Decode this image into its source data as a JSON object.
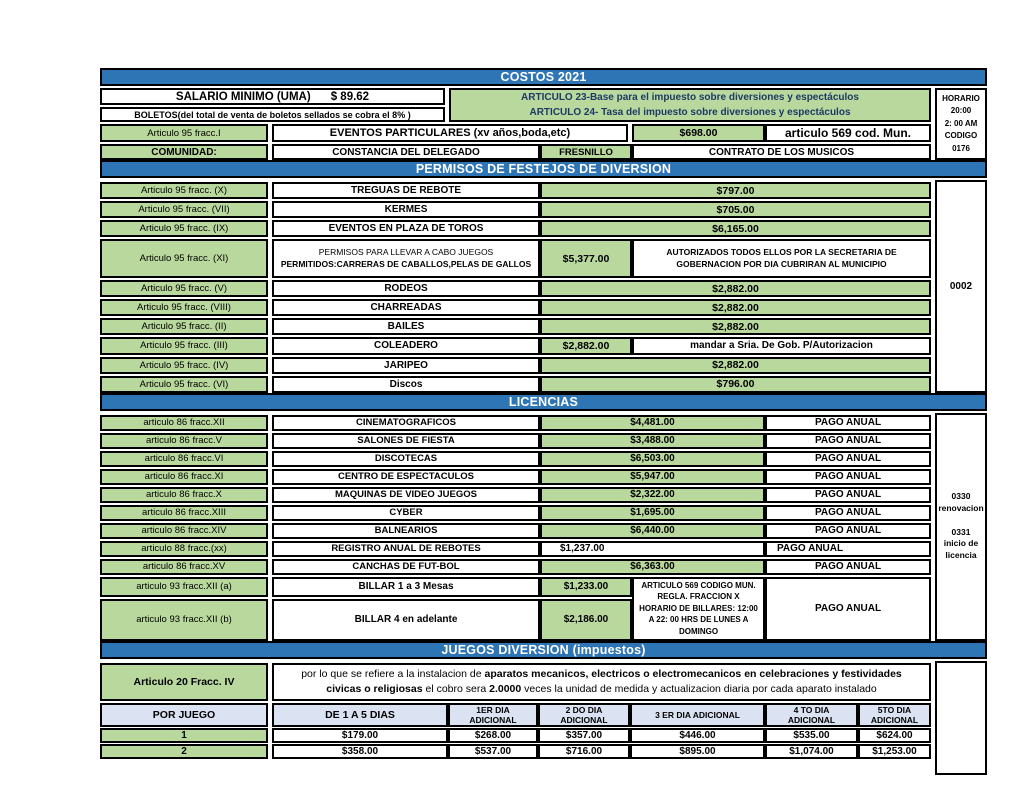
{
  "title": "COSTOS 2021",
  "colors": {
    "band_blue": "#2e75b6",
    "cell_green": "#b9d89d",
    "header_lavender": "#dbe3f2",
    "navy_text": "#1f3864"
  },
  "top": {
    "salario_label": "SALARIO MINIMO (UMA)",
    "salario_value": "$ 89.62",
    "boletos": "BOLETOS(del total de venta de boletos sellados se cobra el  8% )",
    "articulo23": "ARTICULO 23-Base para el impuesto sobre diversiones y espectáculos",
    "articulo24": "ARTICULO 24- Tasa del impuesto sobre diversiones y espectáculos",
    "horario_lines": [
      "HORARIO",
      "20:00",
      "2: 00 AM",
      "CODIGO",
      "0176"
    ],
    "eventos": {
      "label": "Articulo 95  fracc.I",
      "name": "EVENTOS PARTICULARES (xv años,boda,etc)",
      "price": "$698.00",
      "note": "articulo 569 cod. Mun."
    },
    "comunidad": {
      "label": "COMUNIDAD:",
      "name": "CONSTANCIA DEL DELEGADO",
      "place": "FRESNILLO",
      "note": "CONTRATO DE LOS MUSICOS"
    }
  },
  "permisos": {
    "title": "PERMISOS DE FESTEJOS DE DIVERSION",
    "side_code": "0002",
    "rows": [
      {
        "label": "Articulo 95 fracc.   (X)",
        "name": "TREGUAS DE REBOTE",
        "price": "$797.00"
      },
      {
        "label": "Articulo 95 fracc.   (VII)",
        "name": "KERMES",
        "price": "$705.00"
      },
      {
        "label": "Articulo 95 fracc.   (IX)",
        "name": "EVENTOS EN PLAZA DE TOROS",
        "price": "$6,165.00"
      },
      {
        "label": "Articulo 95 fracc.   (XI)",
        "name": "PERMISOS PARA LLEVAR A CABO JUEGOS",
        "name2": "PERMITIDOS:CARRERAS DE CABALLOS,PELAS DE GALLOS",
        "price": "$5,377.00",
        "note": "AUTORIZADOS TODOS ELLOS POR LA SECRETARIA DE GOBERNACION POR DIA CUBRIRAN AL MUNICIPIO",
        "tall": true
      },
      {
        "label": "Articulo 95 fracc.   (V)",
        "name": "RODEOS",
        "price": "$2,882.00"
      },
      {
        "label": "Articulo 95 fracc.   (VIII)",
        "name": "CHARREADAS",
        "price": "$2,882.00"
      },
      {
        "label": "Articulo 95 fracc.   (II)",
        "name": "BAILES",
        "price": "$2,882.00"
      },
      {
        "label": "Articulo 95 fracc.  (III)",
        "name": "COLEADERO",
        "price": "$2,882.00",
        "note": "mandar a Sria. De Gob. P/Autorizacion",
        "note_big": true
      },
      {
        "label": "Articulo 95  fracc. (IV)",
        "name": "JARIPEO",
        "price": "$2,882.00"
      },
      {
        "label": "Articulo 95 fracc.  (VI)",
        "name": "Discos",
        "price": "$796.00"
      }
    ]
  },
  "licencias": {
    "title": "LICENCIAS",
    "side": {
      "code1": "0330",
      "label1": "renovacion",
      "code2": "0331",
      "label2": "inicio de licencia"
    },
    "rows": [
      {
        "label": "articulo 86  fracc.XII",
        "name": "CINEMATOGRAFICOS",
        "price": "$4,481.00",
        "pago": "PAGO ANUAL"
      },
      {
        "label": "articulo 86  fracc.V",
        "name": "SALONES DE FIESTA",
        "price": "$3,488.00",
        "pago": "PAGO ANUAL"
      },
      {
        "label": "articulo 86  fracc.VI",
        "name": "DISCOTECAS",
        "price": "$6,503.00",
        "pago": "PAGO ANUAL"
      },
      {
        "label": "articulo 86  fracc.XI",
        "name": "CENTRO DE ESPECTACULOS",
        "price": "$5,947.00",
        "pago": "PAGO ANUAL"
      },
      {
        "label": "articulo 86  fracc.X",
        "name": "MAQUINAS DE VIDEO JUEGOS",
        "price": "$2,322.00",
        "pago": "PAGO ANUAL"
      },
      {
        "label": "articulo 86  fracc.XIII",
        "name": "CYBER",
        "price": "$1,695.00",
        "pago": "PAGO ANUAL"
      },
      {
        "label": "articulo 86  fracc.XIV",
        "name": "BALNEARIOS",
        "price": "$6,440.00",
        "pago": "PAGO ANUAL"
      },
      {
        "label": "articulo  88 fracc.(xx)",
        "name": "REGISTRO ANUAL DE REBOTES",
        "price": "$1,237.00",
        "pago": "PAGO ANUAL",
        "plain_price": true
      },
      {
        "label": "articulo 86  fracc.XV",
        "name": "CANCHAS DE FUT-BOL",
        "price": "$6,363.00",
        "pago": "PAGO ANUAL"
      }
    ],
    "billar": {
      "row_a": {
        "label": "articulo 93 fracc.XII (a)",
        "name": "BILLAR 1 a 3 Mesas",
        "price": "$1,233.00"
      },
      "row_b": {
        "label": "articulo  93 fracc.XII (b)",
        "name": "BILLAR   4 en adelante",
        "price": "$2,186.00"
      },
      "note": "ARTICULO 569 CODIGO MUN. REGLA. FRACCION X HORARIO DE BILLARES: 12:00 A 22: 00 HRS DE LUNES A DOMINGO",
      "pago": "PAGO ANUAL"
    }
  },
  "juegos": {
    "title": "JUEGOS DIVERSION (impuestos)",
    "label": "Articulo 20 Fracc. IV",
    "desc": [
      {
        "t": "por lo que se refiere a la instalacion de "
      },
      {
        "t": "aparatos mecanicos, electricos o electromecanicos en celebraciones y festividades civicas o religiosas",
        "b": true
      },
      {
        "t": " el cobro sera "
      },
      {
        "t": "2.0000",
        "b": true
      },
      {
        "t": " veces la unidad de medida y actualizacion diaria por cada aparato instalado"
      }
    ],
    "table": {
      "headers": [
        "POR JUEGO",
        "DE 1 A 5 DIAS",
        "1ER DIA ADICIONAL",
        "2 DO DIA ADICIONAL",
        "3 ER DIA ADICIONAL",
        "4 TO DIA ADICIONAL",
        "5TO DIA ADICIONAL"
      ],
      "rows": [
        [
          "1",
          "$179.00",
          "$268.00",
          "$357.00",
          "$446.00",
          "$535.00",
          "$624.00"
        ],
        [
          "2",
          "$358.00",
          "$537.00",
          "$716.00",
          "$895.00",
          "$1,074.00",
          "$1,253.00"
        ]
      ]
    }
  }
}
